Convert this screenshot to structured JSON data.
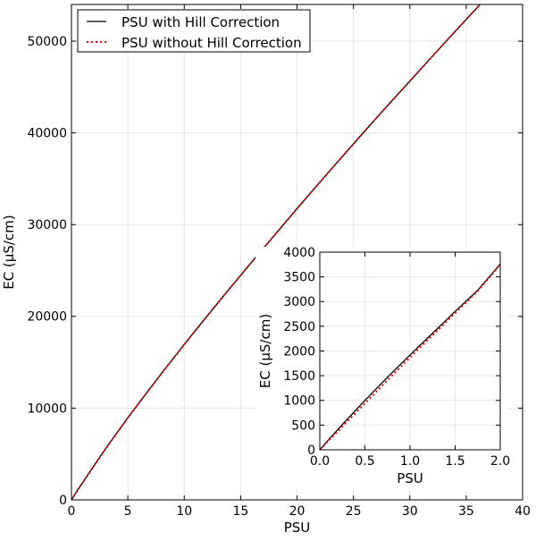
{
  "chart_data": [
    {
      "type": "line",
      "xlabel": "PSU",
      "ylabel": "EC (μS/cm)",
      "xlim": [
        0,
        40
      ],
      "ylim": [
        0,
        54000
      ],
      "xticks": [
        0,
        5,
        10,
        15,
        20,
        25,
        30,
        35,
        40
      ],
      "xtick_labels": [
        "0",
        "5",
        "10",
        "15",
        "20",
        "25",
        "30",
        "35",
        "40"
      ],
      "yticks": [
        0,
        10000,
        20000,
        30000,
        40000,
        50000
      ],
      "ytick_labels": [
        "0",
        "10000",
        "20000",
        "30000",
        "40000",
        "50000"
      ],
      "grid": true,
      "legend": "top-left",
      "series": [
        {
          "name": "PSU with Hill Correction",
          "color": "#000000",
          "style": "solid",
          "x": [
            0,
            0.5,
            1,
            2,
            3,
            4,
            5,
            6,
            8,
            10,
            12,
            14,
            16,
            18,
            20,
            22,
            24,
            26,
            28,
            30,
            32,
            34,
            36,
            38
          ],
          "y": [
            0,
            1000,
            1900,
            3750,
            5550,
            7250,
            8950,
            10600,
            13800,
            16950,
            20000,
            23000,
            25950,
            28850,
            31750,
            34600,
            37400,
            40200,
            42950,
            45650,
            48350,
            51050,
            53700,
            56350
          ]
        },
        {
          "name": "PSU without Hill Correction",
          "color": "#ff0000",
          "style": "dotted",
          "x": [
            0,
            0.5,
            1,
            2,
            3,
            4,
            5,
            6,
            8,
            10,
            12,
            14,
            16,
            18,
            20,
            22,
            24,
            26,
            28,
            30,
            32,
            34,
            36,
            38
          ],
          "y": [
            0,
            950,
            1870,
            3700,
            5500,
            7230,
            8930,
            10590,
            13790,
            16940,
            19990,
            23000,
            25950,
            28850,
            31750,
            34600,
            37400,
            40200,
            42950,
            45650,
            48350,
            51050,
            53700,
            56350
          ]
        }
      ]
    },
    {
      "type": "line",
      "role": "inset",
      "xlabel": "PSU",
      "ylabel": "EC (μS/cm)",
      "xlim": [
        0,
        2
      ],
      "ylim": [
        0,
        4000
      ],
      "xticks": [
        0,
        0.5,
        1,
        1.5,
        2
      ],
      "xtick_labels": [
        "0.0",
        "0.5",
        "1.0",
        "1.5",
        "2.0"
      ],
      "yticks": [
        0,
        500,
        1000,
        1500,
        2000,
        2500,
        3000,
        3500,
        4000
      ],
      "ytick_labels": [
        "0",
        "500",
        "1000",
        "1500",
        "2000",
        "2500",
        "3000",
        "3500",
        "4000"
      ],
      "grid": true,
      "series": [
        {
          "name": "PSU with Hill Correction",
          "color": "#000000",
          "style": "solid",
          "x": [
            0,
            0.1,
            0.2,
            0.3,
            0.5,
            0.75,
            1.0,
            1.25,
            1.5,
            1.75,
            2.0
          ],
          "y": [
            0,
            210,
            410,
            610,
            1000,
            1470,
            1920,
            2360,
            2800,
            3230,
            3760
          ]
        },
        {
          "name": "PSU without Hill Correction",
          "color": "#ff0000",
          "style": "dotted",
          "x": [
            0,
            0.1,
            0.2,
            0.3,
            0.5,
            0.75,
            1.0,
            1.25,
            1.5,
            1.75,
            2.0
          ],
          "y": [
            0,
            190,
            375,
            565,
            940,
            1410,
            1870,
            2320,
            2770,
            3210,
            3750
          ]
        }
      ]
    }
  ]
}
